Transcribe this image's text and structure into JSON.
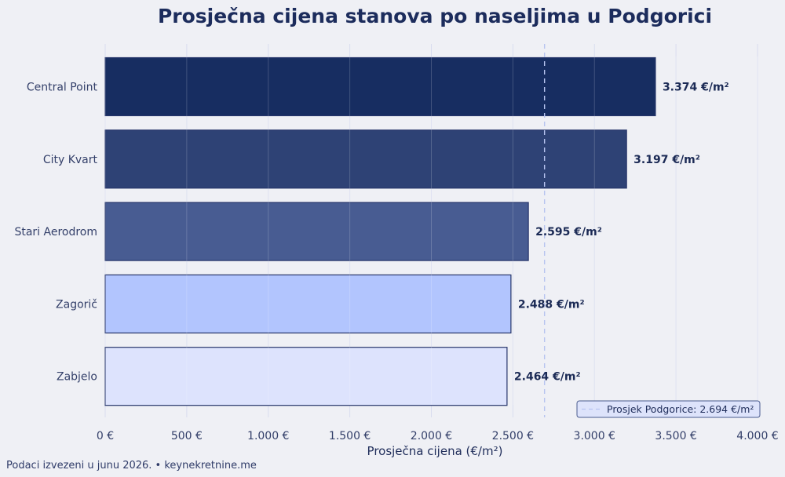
{
  "chart_data": {
    "type": "bar",
    "orientation": "horizontal",
    "title": "Prosječna cijena stanova po naseljima u Podgorici",
    "xlabel": "Prosječna cijena (€/m²)",
    "ylabel": "",
    "xlim": [
      0,
      4000
    ],
    "xticks": [
      0,
      500,
      1000,
      1500,
      2000,
      2500,
      3000,
      3500,
      4000
    ],
    "xtick_labels": [
      "0 €",
      "500 €",
      "1.000 €",
      "1.500 €",
      "2.000 €",
      "2.500 €",
      "3.000 €",
      "3.500 €",
      "4.000 €"
    ],
    "categories": [
      "Central Point",
      "City Kvart",
      "Stari Aerodrom",
      "Zagorič",
      "Zabjelo"
    ],
    "values": [
      3374,
      3197,
      2595,
      2488,
      2464
    ],
    "value_labels": [
      "3.374 €/m²",
      "3.197 €/m²",
      "2.595 €/m²",
      "2.488 €/m²",
      "2.464 €/m²"
    ],
    "bar_colors": [
      "#172d61",
      "#2e4275",
      "#485c92",
      "#b2c5fe",
      "#dde3fd"
    ],
    "reference_line": {
      "value": 2694,
      "label": "Prosjek Podgorice: 2.694 €/m²",
      "color": "#b7c4f0"
    },
    "grid": "vertical",
    "legend_position": "bottom-right"
  },
  "footer": "Podaci izvezeni u junu 2026. • keynekretnine.me"
}
